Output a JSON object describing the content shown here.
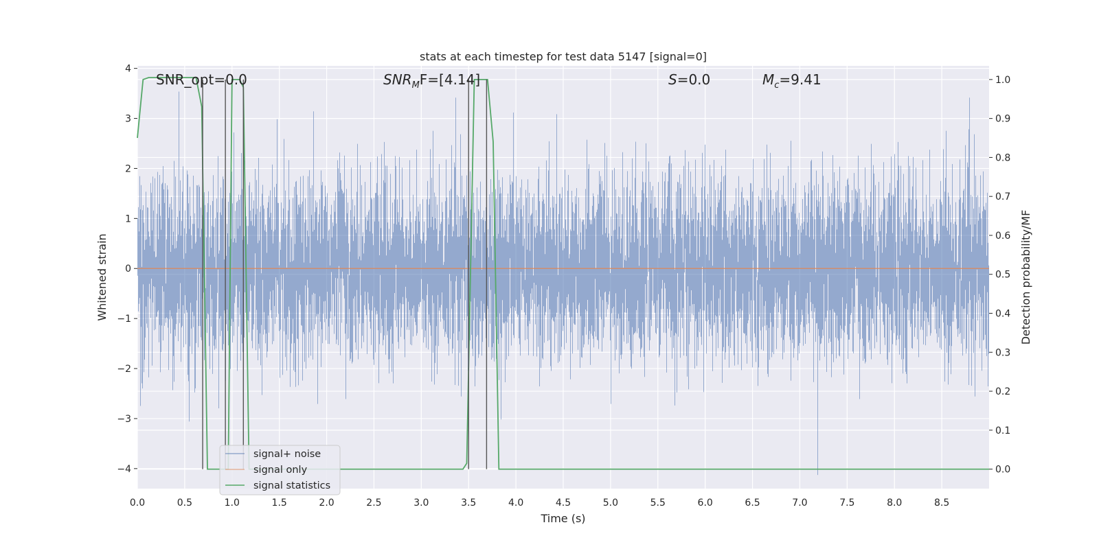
{
  "chart_data": {
    "type": "line",
    "title": "stats at each timestep for test data 5147 [signal=0]",
    "xlabel": "Time (s)",
    "ylabel_left": "Whitened strain",
    "ylabel_right": "Detection probability/MF",
    "xlim": [
      0.0,
      9.0
    ],
    "ylim_left": [
      -4.4,
      4.05
    ],
    "ylim_right": [
      -0.05,
      1.035
    ],
    "x_ticks": [
      "0.0",
      "0.5",
      "1.0",
      "1.5",
      "2.0",
      "2.5",
      "3.0",
      "3.5",
      "4.0",
      "4.5",
      "5.0",
      "5.5",
      "6.0",
      "6.5",
      "7.0",
      "7.5",
      "8.0",
      "8.5"
    ],
    "y_ticks_left": [
      "4",
      "3",
      "2",
      "1",
      "0",
      "−1",
      "−2",
      "−3",
      "−4"
    ],
    "y_ticks_right": [
      "1.0",
      "0.9",
      "0.8",
      "0.7",
      "0.6",
      "0.5",
      "0.4",
      "0.3",
      "0.2",
      "0.1",
      "0.0"
    ],
    "grid": true,
    "annotations": [
      {
        "prefix": "SNR_opt=0.0",
        "base": "",
        "sub": "",
        "suffix": ""
      },
      {
        "prefix": "",
        "base": "SNR",
        "sub": "M",
        "suffix": "F=[4.14]"
      },
      {
        "prefix": "",
        "base": "S",
        "sub": "",
        "suffix": "=0.0"
      },
      {
        "prefix": "",
        "base": "M",
        "sub": "c",
        "suffix": "=9.41"
      }
    ],
    "legend": {
      "placement": "lower-left",
      "entries": [
        "signal+ noise",
        "signal only",
        "signal statistics"
      ]
    },
    "series": [
      {
        "name": "signal+ noise",
        "color": "#4c72b0",
        "kind": "noise",
        "approx_std": 0.85,
        "sample_rate_hz": 1000
      },
      {
        "name": "signal only",
        "color": "#dd8452",
        "kind": "constant",
        "value": 0.0
      },
      {
        "name": "signal statistics",
        "color": "#55a868",
        "x": [
          0.0,
          0.06,
          0.12,
          0.5,
          0.62,
          0.68,
          0.74,
          0.78,
          0.96,
          1.0,
          1.08,
          1.12,
          1.18,
          1.3,
          2.5,
          3.44,
          3.48,
          3.56,
          3.7,
          3.76,
          3.82,
          4.0,
          9.0
        ],
        "y": [
          0.85,
          1.0,
          1.005,
          1.005,
          1.005,
          0.93,
          0.0,
          0.0,
          0.0,
          1.0,
          1.0,
          0.98,
          0.0,
          0.0,
          0.0,
          0.0,
          0.015,
          1.0,
          1.0,
          0.84,
          0.0,
          0.0,
          0.0
        ]
      }
    ],
    "vertical_markers": {
      "color": "#555555",
      "x": [
        0.69,
        0.93,
        1.12,
        3.5,
        3.69
      ],
      "y_range_right": [
        0.0,
        1.0
      ]
    }
  }
}
